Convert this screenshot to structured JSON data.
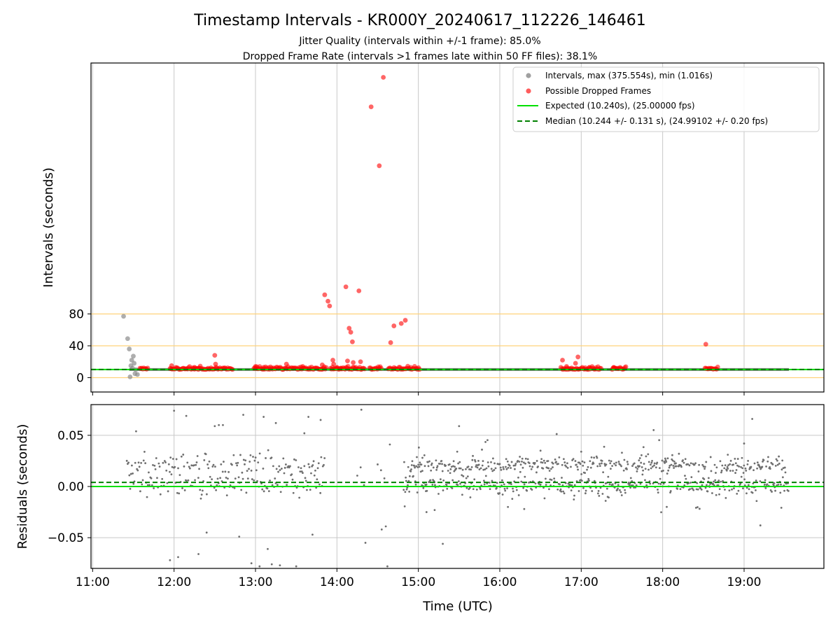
{
  "chart_data": {
    "title": "Timestamp Intervals - KR000Y_20240617_112226_146461",
    "subtitle_lines": [
      "Jitter Quality (intervals within +/-1 frame): 85.0%",
      "Dropped Frame Rate (intervals >1 frames late within 50 FF files): 38.1%"
    ],
    "xlabel": "Time (UTC)",
    "x_tick_labels": [
      "11:00",
      "12:00",
      "13:00",
      "14:00",
      "15:00",
      "16:00",
      "17:00",
      "18:00",
      "19:00"
    ],
    "x_range_hours": [
      10.98,
      19.98
    ],
    "colors": {
      "intervals": "#8c8c8c",
      "dropped": "#ff0000",
      "expected": "#00e000",
      "median": "#008000",
      "threshold": "#ffd27a",
      "grid": "#c8c8c8"
    },
    "charts": [
      {
        "type": "scatter",
        "ylabel": "Intervals (seconds)",
        "y_range": [
          -18,
          395
        ],
        "y_ticks": [
          0,
          40,
          80
        ],
        "y_tick_labels": [
          "0",
          "40",
          "80"
        ],
        "threshold_lines": [
          0,
          40,
          80
        ],
        "expected_value": 10.24,
        "median_value": 10.244,
        "legend": {
          "position": "upper right",
          "entries": [
            {
              "label": "Intervals, max (375.554s), min (1.016s)",
              "kind": "marker",
              "color": "#a0a0a0"
            },
            {
              "label": "Possible Dropped Frames",
              "kind": "marker",
              "color": "#ff5c5c"
            },
            {
              "label": "Expected (10.240s), (25.00000 fps)",
              "kind": "line",
              "color": "#00e000"
            },
            {
              "label": "Median (10.244 +/- 0.131 s), (24.99102 +/- 0.20 fps)",
              "kind": "dashed",
              "color": "#008000"
            }
          ]
        },
        "series": [
          {
            "name": "Intervals, max (375.554s), min (1.016s)",
            "x": [
              11.38,
              11.43,
              11.45,
              11.47,
              11.48,
              11.5,
              11.52,
              11.53,
              11.55,
              11.46,
              11.49,
              11.51
            ],
            "y": [
              77,
              49,
              36,
              15,
              22,
              27,
              5,
              10,
              4,
              1,
              12,
              18
            ]
          },
          {
            "name": "Possible Dropped Frames",
            "x": [
              11.97,
              12.25,
              12.3,
              12.5,
              12.51,
              13.0,
              13.1,
              13.38,
              13.58,
              13.82,
              13.85,
              13.89,
              13.91,
              13.95,
              13.96,
              14.0,
              14.05,
              14.11,
              14.13,
              14.15,
              14.17,
              14.19,
              14.2,
              14.27,
              14.29,
              14.42,
              14.52,
              14.57,
              14.66,
              14.7,
              14.79,
              14.84,
              16.77,
              16.82,
              16.93,
              16.96,
              17.1,
              17.4,
              18.53
            ],
            "y": [
              15,
              13,
              12,
              28,
              17,
              14,
              13,
              17,
              14,
              16,
              104,
              96,
              90,
              22,
              17,
              13,
              12,
              114,
              21,
              62,
              57,
              45,
              19,
              109,
              20,
              340,
              266,
              377,
              44,
              65,
              68,
              72,
              22,
              14,
              18,
              26,
              13,
              13,
              42
            ]
          }
        ]
      },
      {
        "type": "scatter",
        "ylabel": "Residuals (seconds)",
        "y_range": [
          -0.08,
          0.08
        ],
        "y_ticks": [
          -0.05,
          0.0,
          0.05
        ],
        "y_tick_labels": [
          "−0.05",
          "0.00",
          "0.05"
        ],
        "zero_line": 0.0,
        "median_offset": 0.004,
        "series": [
          {
            "name": "Residuals",
            "x": [
              11.95,
              12.05,
              12.15,
              12.3,
              12.5,
              12.55,
              12.6,
              12.85,
              12.95,
              13.1,
              13.2,
              13.25,
              13.3,
              13.5,
              13.65,
              13.7,
              14.3,
              14.35,
              14.55,
              14.62,
              15.3,
              15.5,
              16.5,
              17.5,
              18.2,
              19.1,
              19.2,
              12.0,
              12.4,
              12.8,
              13.05,
              13.15,
              13.6,
              13.8,
              14.6,
              14.65,
              15.05,
              15.1,
              15.2,
              16.0,
              16.1,
              16.3,
              17.0,
              17.3,
              18.8,
              19.0
            ],
            "y": [
              -0.072,
              -0.069,
              0.069,
              -0.066,
              0.059,
              0.06,
              0.06,
              0.07,
              -0.075,
              0.068,
              -0.076,
              0.062,
              -0.077,
              -0.078,
              0.068,
              -0.047,
              0.075,
              -0.055,
              -0.042,
              -0.078,
              -0.056,
              0.059,
              0.035,
              0.033,
              0.032,
              0.066,
              -0.038,
              0.074,
              -0.045,
              -0.049,
              -0.078,
              -0.061,
              0.052,
              0.065,
              -0.039,
              0.041,
              0.028,
              -0.025,
              -0.023,
              0.022,
              -0.02,
              -0.022,
              0.034,
              -0.014,
              0.031,
              0.042
            ]
          }
        ]
      }
    ]
  }
}
